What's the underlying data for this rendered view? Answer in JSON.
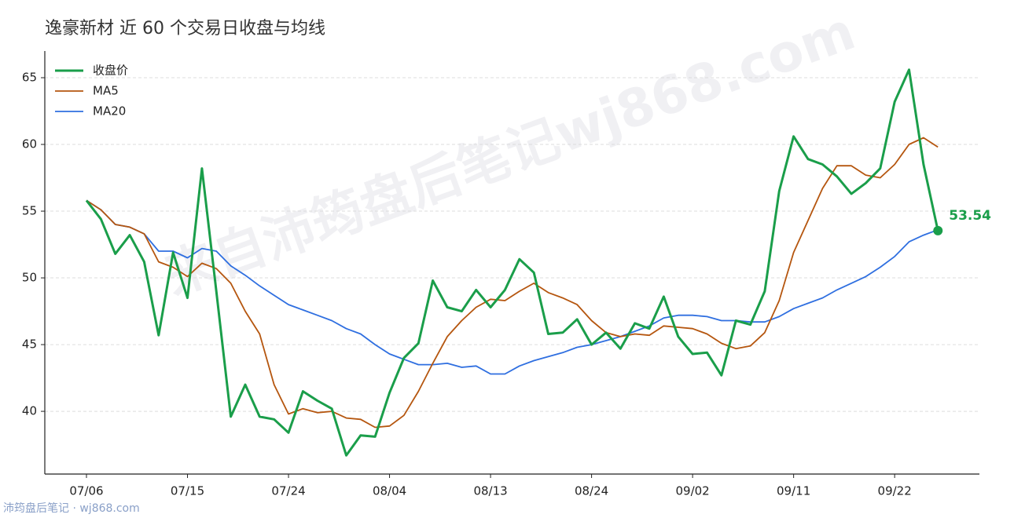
{
  "chart_data": {
    "type": "line",
    "title": "逸豪新材 近 60 个交易日收盘与均线",
    "watermark": "来自沛筠盘后笔记wj868.com",
    "footer": "沛筠盘后笔记 · wj868.com",
    "categories": [
      "07/06",
      null,
      null,
      null,
      null,
      null,
      null,
      "07/15",
      null,
      null,
      null,
      null,
      null,
      null,
      "07/24",
      null,
      null,
      null,
      null,
      null,
      null,
      "08/04",
      null,
      null,
      null,
      null,
      null,
      null,
      "08/13",
      null,
      null,
      null,
      null,
      null,
      null,
      "08/24",
      null,
      null,
      null,
      null,
      null,
      null,
      "09/02",
      null,
      null,
      null,
      null,
      null,
      null,
      "09/11",
      null,
      null,
      null,
      null,
      null,
      null,
      "09/22",
      null,
      null,
      null
    ],
    "series": [
      {
        "name": "收盘价",
        "color": "#1a9e4a",
        "values": [
          55.8,
          54.4,
          51.8,
          53.2,
          51.2,
          45.7,
          51.9,
          48.5,
          58.2,
          49.0,
          39.6,
          42.0,
          39.6,
          39.4,
          38.4,
          41.5,
          40.8,
          40.2,
          36.7,
          38.2,
          38.1,
          41.4,
          44.0,
          45.1,
          49.8,
          47.8,
          47.5,
          49.1,
          47.8,
          49.1,
          51.4,
          50.4,
          45.8,
          45.9,
          46.9,
          45.0,
          45.9,
          44.7,
          46.6,
          46.2,
          48.6,
          45.6,
          44.3,
          44.4,
          42.7,
          46.8,
          46.5,
          49.0,
          56.5,
          60.6,
          58.9,
          58.5,
          57.6,
          56.3,
          57.1,
          58.2,
          63.2,
          65.6,
          58.5,
          53.54
        ]
      },
      {
        "name": "MA5",
        "color": "#b5560f",
        "values": [
          55.8,
          55.1,
          54.0,
          53.8,
          53.3,
          51.2,
          50.8,
          50.1,
          51.1,
          50.7,
          49.6,
          47.5,
          45.8,
          42.0,
          39.8,
          40.2,
          39.9,
          40.0,
          39.5,
          39.4,
          38.8,
          38.9,
          39.7,
          41.5,
          43.6,
          45.6,
          46.8,
          47.8,
          48.4,
          48.3,
          49.0,
          49.6,
          48.9,
          48.5,
          48.0,
          46.8,
          45.9,
          45.6,
          45.8,
          45.7,
          46.4,
          46.3,
          46.2,
          45.8,
          45.1,
          44.7,
          44.9,
          45.9,
          48.3,
          51.9,
          54.3,
          56.7,
          58.4,
          58.4,
          57.7,
          57.5,
          58.5,
          60.0,
          60.5,
          59.8
        ]
      },
      {
        "name": "MA20",
        "color": "#2f6fe0",
        "values": [
          55.8,
          55.1,
          54.0,
          53.8,
          53.3,
          52.0,
          52.0,
          51.5,
          52.2,
          52.0,
          50.9,
          50.2,
          49.4,
          48.7,
          48.0,
          47.6,
          47.2,
          46.8,
          46.2,
          45.8,
          45.0,
          44.3,
          43.9,
          43.5,
          43.5,
          43.6,
          43.3,
          43.4,
          42.8,
          42.8,
          43.4,
          43.8,
          44.1,
          44.4,
          44.8,
          45.0,
          45.3,
          45.6,
          46.0,
          46.4,
          47.0,
          47.2,
          47.2,
          47.1,
          46.8,
          46.8,
          46.7,
          46.7,
          47.1,
          47.7,
          48.1,
          48.5,
          49.1,
          49.6,
          50.1,
          50.8,
          51.6,
          52.7,
          53.2,
          53.6
        ]
      }
    ],
    "ylim": [
      35.3,
      67
    ],
    "yticks": [
      40,
      45,
      50,
      55,
      60,
      65
    ],
    "grid": true,
    "legend": "upper left"
  }
}
